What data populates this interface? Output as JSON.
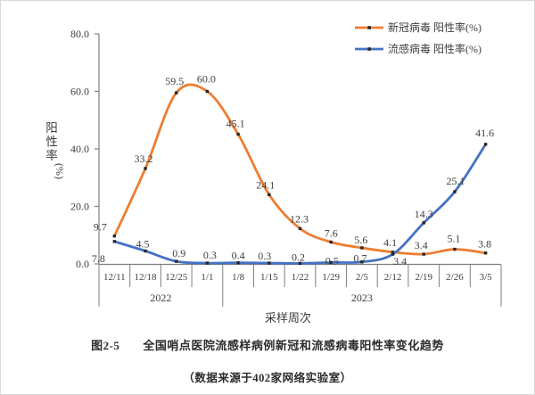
{
  "legend": {
    "items": [
      {
        "id": "covid",
        "label": "新冠病毒 阳性率(%)",
        "color": "#ED7D31"
      },
      {
        "id": "flu",
        "label": "流感病毒 阳性率(%)",
        "color": "#4472C4"
      }
    ]
  },
  "axes": {
    "y_title": "阳性率",
    "y_title_unit": "(%)",
    "x_title": "采样周次",
    "y_tick_labels": [
      "80.0",
      "60.0",
      "40.0",
      "20.0",
      "0.0"
    ]
  },
  "chart_data": {
    "type": "line",
    "title": "全国哨点医院流感样病例新冠和流感病毒阳性率变化趋势",
    "xlabel": "采样周次",
    "ylabel": "阳性率(%)",
    "ylim": [
      0,
      80
    ],
    "y_tick_step": 20,
    "grid": false,
    "smooth": true,
    "show_markers": true,
    "show_data_labels": true,
    "legend_position": "top-right",
    "marker_color": "#262626",
    "categories": [
      "12/11",
      "12/18",
      "12/25",
      "1/1",
      "1/8",
      "1/15",
      "1/22",
      "1/29",
      "2/5",
      "2/12",
      "2/19",
      "2/26",
      "3/5"
    ],
    "year_groups": [
      {
        "label": "2022",
        "span": 4
      },
      {
        "label": "2023",
        "span": 9
      }
    ],
    "series": [
      {
        "id": "covid",
        "name": "新冠病毒 阳性率(%)",
        "color": "#ED7D31",
        "values": [
          9.7,
          33.2,
          59.5,
          60.0,
          45.1,
          24.1,
          12.3,
          7.6,
          5.6,
          4.1,
          3.4,
          5.1,
          3.8
        ],
        "label_offsets": [
          [
            -16,
            -6
          ],
          [
            -2,
            -7
          ],
          [
            -2,
            -9
          ],
          [
            -1,
            -10
          ],
          [
            -3,
            -8
          ],
          [
            -4,
            -7
          ],
          [
            -1,
            -7
          ],
          [
            0,
            -6
          ],
          [
            -1,
            -5
          ],
          [
            -3,
            -7
          ],
          [
            -3,
            -6
          ],
          [
            -1,
            -8
          ],
          [
            -1,
            -6
          ]
        ]
      },
      {
        "id": "flu",
        "name": "流感病毒 阳性率(%)",
        "color": "#4472C4",
        "values": [
          7.8,
          4.5,
          0.9,
          0.3,
          0.4,
          0.3,
          0.2,
          0.5,
          0.7,
          3.4,
          14.3,
          25.1,
          41.6
        ],
        "label_offsets": [
          [
            -18,
            23
          ],
          [
            -3,
            -4
          ],
          [
            3,
            -5
          ],
          [
            3,
            -5
          ],
          [
            0,
            -4
          ],
          [
            -5,
            -4
          ],
          [
            -2,
            -3
          ],
          [
            1,
            2
          ],
          [
            -2,
            0
          ],
          [
            8,
            12
          ],
          [
            0,
            -6
          ],
          [
            1,
            -8
          ],
          [
            -1,
            -9
          ]
        ]
      }
    ]
  },
  "captions": {
    "figure_label": "图2-5",
    "title": "全国哨点医院流感样病例新冠和流感病毒阳性率变化趋势",
    "source": "（数据来源于402家网络实验室）"
  }
}
